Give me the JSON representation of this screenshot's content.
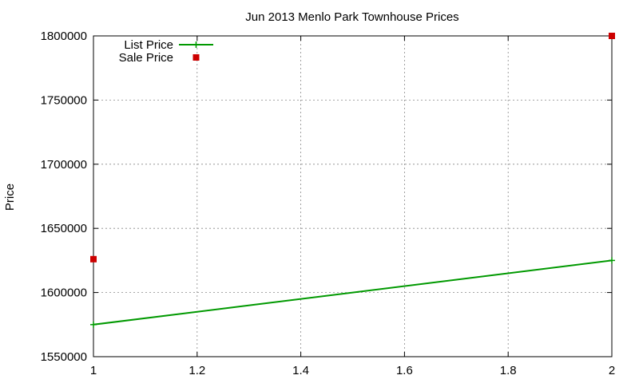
{
  "chart_data": {
    "type": "line",
    "title": "Jun 2013 Menlo Park Townhouse Prices",
    "xlabel": "",
    "ylabel": "Price",
    "xlim": [
      1,
      2
    ],
    "ylim": [
      1550000,
      1800000
    ],
    "x_ticks": [
      1,
      1.2,
      1.4,
      1.6,
      1.8,
      2
    ],
    "x_tick_labels": [
      "1",
      "1.2",
      "1.4",
      "1.6",
      "1.8",
      "2"
    ],
    "y_ticks": [
      1550000,
      1600000,
      1650000,
      1700000,
      1750000,
      1800000
    ],
    "y_tick_labels": [
      "1550000",
      "1600000",
      "1650000",
      "1700000",
      "1750000",
      "1800000"
    ],
    "grid": true,
    "legend_position": "top-left",
    "series": [
      {
        "name": "List Price",
        "type": "linespoints",
        "color": "#009900",
        "points": [
          {
            "x": 1,
            "y": 1575000
          },
          {
            "x": 2,
            "y": 1625000
          }
        ]
      },
      {
        "name": "Sale Price",
        "type": "points",
        "color": "#cc0000",
        "points": [
          {
            "x": 1,
            "y": 1626000
          },
          {
            "x": 2,
            "y": 1800000
          }
        ]
      }
    ]
  }
}
